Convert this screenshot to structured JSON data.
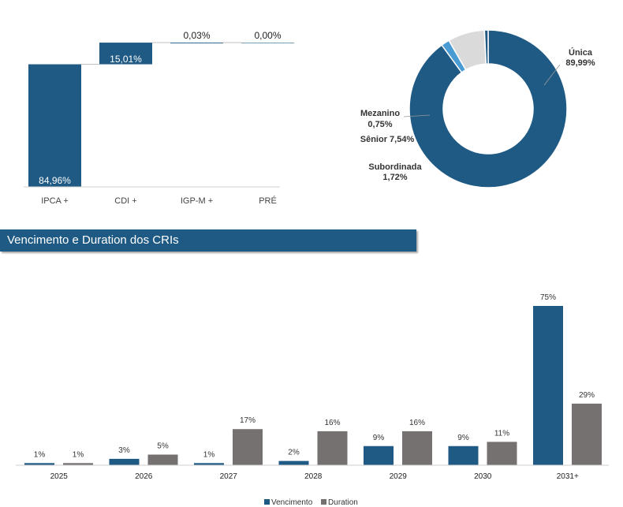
{
  "charts": {
    "indexer": {
      "type": "bar",
      "categories": [
        "IPCA +",
        "CDI +",
        "IGP-M +",
        "PRÉ"
      ],
      "values": [
        84.96,
        15.01,
        0.03,
        0.0
      ],
      "value_labels": [
        "84,96%",
        "15,01%",
        "0,03%",
        "0,00%"
      ],
      "colors": [
        "#1f5a85",
        "#1f5a85",
        "#1f5a85",
        "#1f5a85"
      ],
      "total": 100
    },
    "subordination": {
      "type": "pie",
      "slices": [
        {
          "name": "Única",
          "value": 89.99,
          "label": "89,99%",
          "color": "#1f5a85"
        },
        {
          "name": "Subordinada",
          "value": 1.72,
          "label": "1,72%",
          "color": "#4a9ad4"
        },
        {
          "name": "Sênior",
          "value": 7.54,
          "label": "7,54%",
          "color": "#dadada"
        },
        {
          "name": "Mezanino",
          "value": 0.75,
          "label": "0,75%",
          "color": "#1f5a85"
        }
      ],
      "labels": {
        "unica_name": "Única",
        "unica_value": "89,99%",
        "mezanino_name": "Mezanino",
        "mezanino_value": "0,75%",
        "senior": "Sênior 7,54%",
        "subordinada_name": "Subordinada",
        "subordinada_value": "1,72%"
      }
    },
    "maturity": {
      "type": "bar",
      "categories": [
        "2025",
        "2026",
        "2027",
        "2028",
        "2029",
        "2030",
        "2031+"
      ],
      "series": [
        {
          "name": "Vencimento",
          "color": "#1f5a85",
          "values": [
            1,
            3,
            1,
            2,
            9,
            9,
            75
          ],
          "labels": [
            "1%",
            "3%",
            "1%",
            "2%",
            "9%",
            "9%",
            "75%"
          ]
        },
        {
          "name": "Duration",
          "color": "#767171",
          "values": [
            1,
            5,
            17,
            16,
            16,
            11,
            29
          ],
          "labels": [
            "1%",
            "5%",
            "17%",
            "16%",
            "16%",
            "11%",
            "29%"
          ]
        }
      ]
    }
  },
  "chart_data": [
    {
      "type": "bar",
      "categories": [
        "IPCA +",
        "CDI +",
        "IGP-M +",
        "PRÉ"
      ],
      "values": [
        84.96,
        15.01,
        0.03,
        0.0
      ],
      "title": "",
      "xlabel": "",
      "ylabel": ""
    },
    {
      "type": "pie",
      "categories": [
        "Única",
        "Subordinada",
        "Sênior",
        "Mezanino"
      ],
      "values": [
        89.99,
        1.72,
        7.54,
        0.75
      ],
      "title": ""
    },
    {
      "type": "bar",
      "categories": [
        "2025",
        "2026",
        "2027",
        "2028",
        "2029",
        "2030",
        "2031+"
      ],
      "series": [
        {
          "name": "Vencimento",
          "values": [
            1,
            3,
            1,
            2,
            9,
            9,
            75
          ]
        },
        {
          "name": "Duration",
          "values": [
            1,
            5,
            17,
            16,
            16,
            11,
            29
          ]
        }
      ],
      "title": "Vencimento e Duration dos CRIs",
      "legend": "bottom"
    }
  ],
  "section": {
    "title": "Vencimento e Duration dos CRIs"
  },
  "legend": {
    "vencimento": "Vencimento",
    "duration": "Duration"
  }
}
